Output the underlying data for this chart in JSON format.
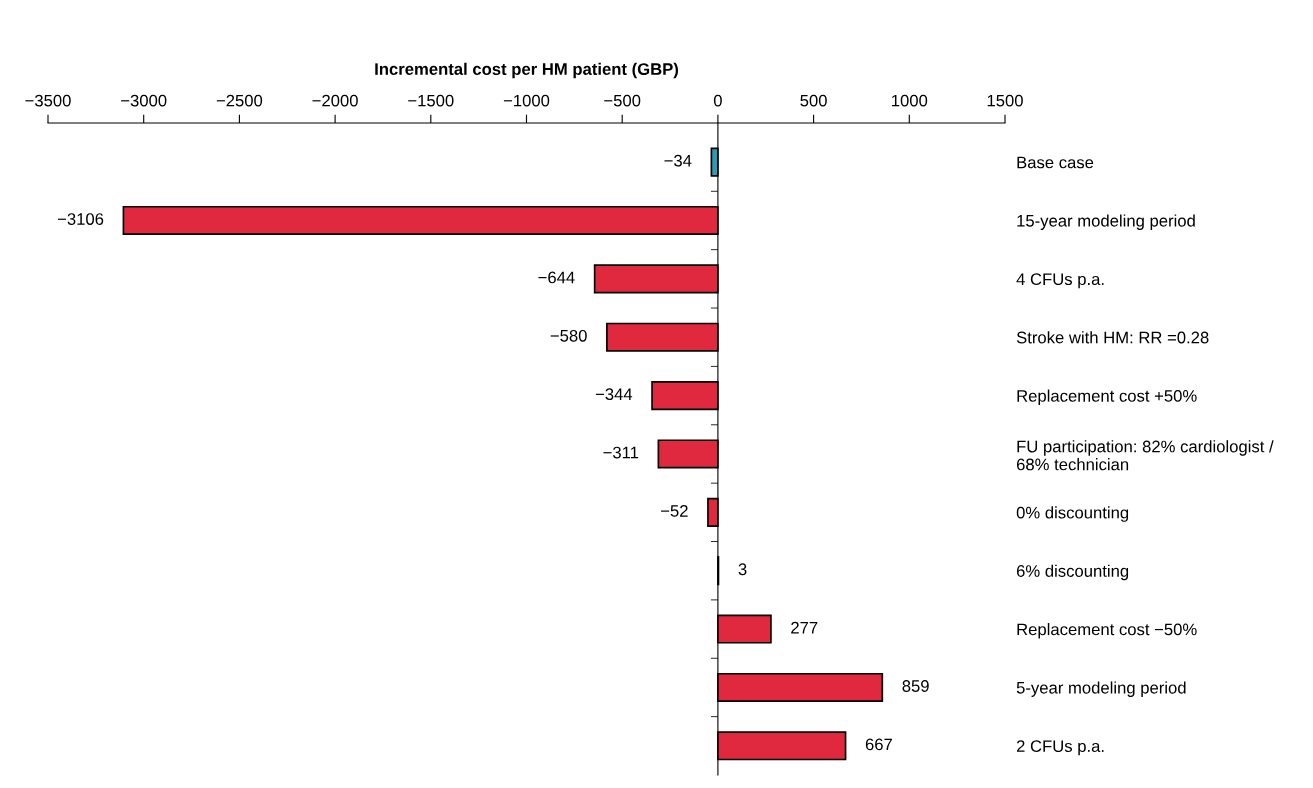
{
  "chart_data": {
    "type": "bar",
    "orientation": "horizontal",
    "xlabel": "Incremental cost per HM patient (GBP)",
    "categories": [
      "Base case",
      "15-year modeling period",
      "4 CFUs p.a.",
      "Stroke with HM: RR =0.28",
      "Replacement cost +50%",
      "FU participation: 82% cardiologist /\n68% technician",
      "0% discounting",
      "6% discounting",
      "Replacement cost −50%",
      "5-year modeling period",
      "2 CFUs p.a."
    ],
    "values": [
      -34,
      -3106,
      -644,
      -580,
      -344,
      -311,
      -52,
      3,
      277,
      859,
      667
    ],
    "value_labels": [
      "−34",
      "−3106",
      "−644",
      "−580",
      "−344",
      "−311",
      "−52",
      "3",
      "277",
      "859",
      "667"
    ],
    "colors": [
      "#2a9cb4",
      "#e0283f",
      "#e0283f",
      "#e0283f",
      "#e0283f",
      "#e0283f",
      "#e0283f",
      "#e0283f",
      "#e0283f",
      "#e0283f",
      "#e0283f"
    ],
    "xlim": [
      -3500,
      1500
    ],
    "xticks": [
      {
        "value": -3500,
        "label": "−3500"
      },
      {
        "value": -3000,
        "label": "−3000"
      },
      {
        "value": -2500,
        "label": "−2500"
      },
      {
        "value": -2000,
        "label": "−2000"
      },
      {
        "value": -1500,
        "label": "−1500"
      },
      {
        "value": -1000,
        "label": "−1000"
      },
      {
        "value": -500,
        "label": "−500"
      },
      0,
      500,
      1000,
      1500
    ],
    "legend": false
  }
}
